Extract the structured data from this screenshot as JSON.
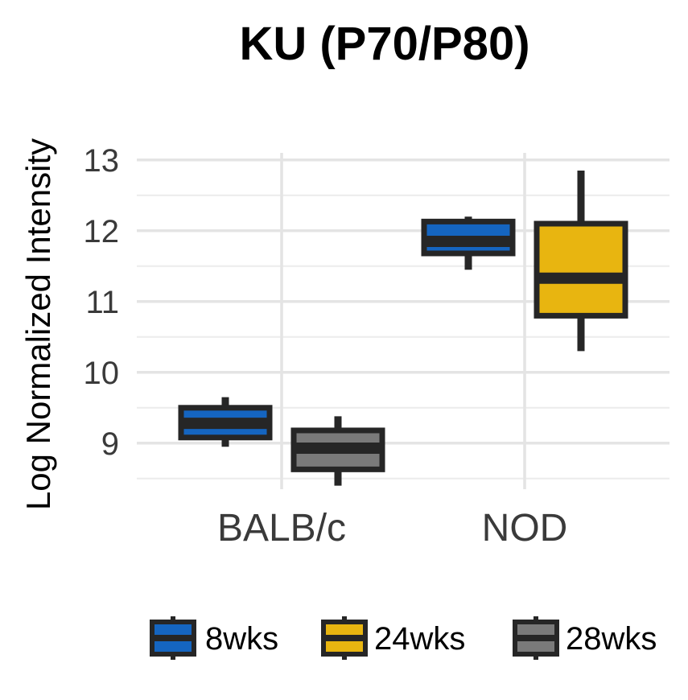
{
  "chart_data": {
    "type": "box",
    "title": "KU (P70/P80)",
    "xlabel": "",
    "ylabel": "Log Normalized Intensity",
    "ylim": [
      8.35,
      13.1
    ],
    "yticks": [
      9,
      10,
      11,
      12,
      13
    ],
    "categories": [
      "BALB/c",
      "NOD"
    ],
    "grid": true,
    "legend_position": "bottom",
    "series": [
      {
        "name": "8wks",
        "color": "#1565C0",
        "boxes": [
          {
            "category": "BALB/c",
            "min": 8.95,
            "q1": 9.08,
            "median": 9.28,
            "q3": 9.5,
            "max": 9.65
          },
          {
            "category": "NOD",
            "min": 11.45,
            "q1": 11.68,
            "median": 11.85,
            "q3": 12.13,
            "max": 12.2
          }
        ]
      },
      {
        "name": "24wks",
        "color": "#E8B510",
        "boxes": [
          {
            "category": "NOD",
            "min": 10.3,
            "q1": 10.8,
            "median": 11.33,
            "q3": 12.1,
            "max": 12.85
          }
        ]
      },
      {
        "name": "28wks",
        "color": "#7A7A7A",
        "boxes": [
          {
            "category": "BALB/c",
            "min": 8.4,
            "q1": 8.63,
            "median": 8.93,
            "q3": 9.18,
            "max": 9.38
          }
        ]
      }
    ]
  }
}
